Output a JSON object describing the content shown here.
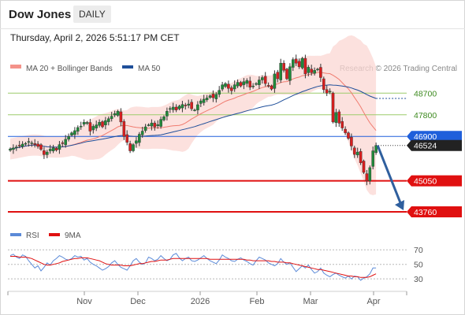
{
  "header": {
    "title": "Dow Jones",
    "period": "DAILY",
    "timestamp": "Thursday, April 2, 2026 5:51:17 PM CET"
  },
  "legend": {
    "bollinger": "MA 20 + Bollinger Bands",
    "ma50": "MA 50",
    "credit": "Research © 2026 Trading Central"
  },
  "rsi_legend": {
    "rsi": "RSI",
    "ma": "9MA"
  },
  "colors": {
    "up": "#1f8a3a",
    "down": "#d81e1e",
    "band": "#fbd7d3",
    "ma20": "#f07c70",
    "ma50": "#1f4f9a",
    "resistance": "#9ccc6a",
    "pivot": "#1f5fdb",
    "support": "#e01010",
    "arrow": "#2f5f9e",
    "rsi": "#5b8ad8",
    "rsi_ma": "#e01010"
  },
  "chart_data": [
    {
      "type": "candlestick",
      "title": "Dow Jones",
      "x_ticks": [
        "Nov",
        "Dec",
        "2026",
        "Feb",
        "Mar",
        "Apr"
      ],
      "ylim": [
        43400,
        49300
      ],
      "levels": [
        {
          "value": 48700,
          "label": "48700",
          "kind": "resistance"
        },
        {
          "value": 47800,
          "label": "47800",
          "kind": "resistance"
        },
        {
          "value": 46900,
          "label": "46900",
          "kind": "pivot"
        },
        {
          "value": 46524,
          "label": "46524",
          "kind": "last"
        },
        {
          "value": 45050,
          "label": "45050",
          "kind": "support"
        },
        {
          "value": 43760,
          "label": "43760",
          "kind": "support"
        }
      ],
      "close": [
        46380,
        46420,
        46460,
        46530,
        46580,
        46610,
        46690,
        46630,
        46560,
        46480,
        46360,
        46140,
        46250,
        46370,
        46430,
        46330,
        46560,
        46600,
        46780,
        46900,
        47050,
        47140,
        47270,
        47330,
        47490,
        47480,
        47120,
        47320,
        47380,
        47490,
        47300,
        47560,
        47640,
        47740,
        47850,
        47950,
        47500,
        46900,
        46650,
        46300,
        46560,
        46720,
        46990,
        47120,
        47300,
        47380,
        47460,
        47290,
        47390,
        47610,
        47720,
        47950,
        48060,
        48120,
        48000,
        48160,
        48230,
        48170,
        48250,
        48050,
        48000,
        48220,
        48380,
        48450,
        48500,
        48590,
        48510,
        48650,
        48820,
        49050,
        49100,
        48900,
        48800,
        49050,
        49150,
        49000,
        49180,
        49230,
        48950,
        49000,
        49100,
        49250,
        49350,
        49100,
        49020,
        48870,
        49500,
        49300,
        49950,
        49650,
        49300,
        49800,
        50100,
        49950,
        49800,
        50150,
        49500,
        49780,
        49550,
        49650,
        49700,
        49350,
        48850,
        48700,
        48780,
        47500,
        47900,
        47450,
        47250,
        47050,
        46820,
        46500,
        46150,
        46250,
        45800,
        45400,
        45050,
        45600,
        46300,
        46524
      ],
      "series": [
        {
          "name": "MA 20 + Bollinger Bands"
        },
        {
          "name": "MA 50"
        }
      ],
      "forecast_arrow": {
        "from": 46524,
        "to": 43760
      }
    },
    {
      "type": "line",
      "x_ticks": [
        "Nov",
        "Dec",
        "2026",
        "Feb",
        "Mar",
        "Apr"
      ],
      "y_ticks": [
        70,
        50,
        30
      ],
      "ylim": [
        15,
        80
      ],
      "series": [
        {
          "name": "RSI",
          "values": [
            62,
            64,
            60,
            58,
            63,
            61,
            55,
            50,
            45,
            48,
            41,
            46,
            52,
            49,
            55,
            58,
            62,
            60,
            57,
            56,
            58,
            62,
            60,
            61,
            56,
            58,
            53,
            50,
            48,
            45,
            42,
            44,
            47,
            52,
            55,
            50,
            46,
            44,
            42,
            48,
            55,
            58,
            53,
            50,
            52,
            60,
            58,
            55,
            57,
            62,
            58,
            55,
            57,
            63,
            65,
            59,
            55,
            58,
            60,
            55,
            54,
            56,
            59,
            62,
            58,
            55,
            53,
            51,
            56,
            63,
            60,
            58,
            55,
            54,
            57,
            59,
            56,
            54,
            51,
            49,
            55,
            60,
            58,
            56,
            52,
            50,
            48,
            51,
            58,
            53,
            50,
            52,
            46,
            40,
            44,
            48,
            45,
            49,
            43,
            38,
            40,
            45,
            38,
            35,
            33,
            36,
            38,
            35,
            33,
            31,
            34,
            30,
            34,
            33,
            28,
            31,
            33,
            37,
            45,
            45
          ]
        },
        {
          "name": "9MA",
          "values": [
            61,
            61,
            61,
            60,
            60,
            60,
            59,
            58,
            56,
            54,
            52,
            50,
            49,
            49,
            50,
            51,
            52,
            54,
            55,
            56,
            57,
            58,
            58,
            59,
            59,
            59,
            58,
            57,
            56,
            55,
            53,
            51,
            50,
            49,
            49,
            49,
            49,
            48,
            48,
            48,
            49,
            50,
            51,
            51,
            52,
            53,
            54,
            54,
            55,
            56,
            56,
            56,
            57,
            58,
            58,
            58,
            58,
            58,
            58,
            58,
            58,
            58,
            58,
            58,
            58,
            57,
            57,
            57,
            57,
            57,
            57,
            57,
            57,
            57,
            57,
            57,
            57,
            56,
            56,
            55,
            55,
            55,
            55,
            55,
            55,
            54,
            54,
            53,
            53,
            53,
            52,
            52,
            51,
            50,
            49,
            48,
            47,
            46,
            45,
            44,
            43,
            43,
            42,
            41,
            40,
            39,
            38,
            37,
            36,
            35,
            34,
            34,
            33,
            33,
            32,
            32,
            32,
            33,
            35,
            37
          ]
        }
      ]
    }
  ]
}
